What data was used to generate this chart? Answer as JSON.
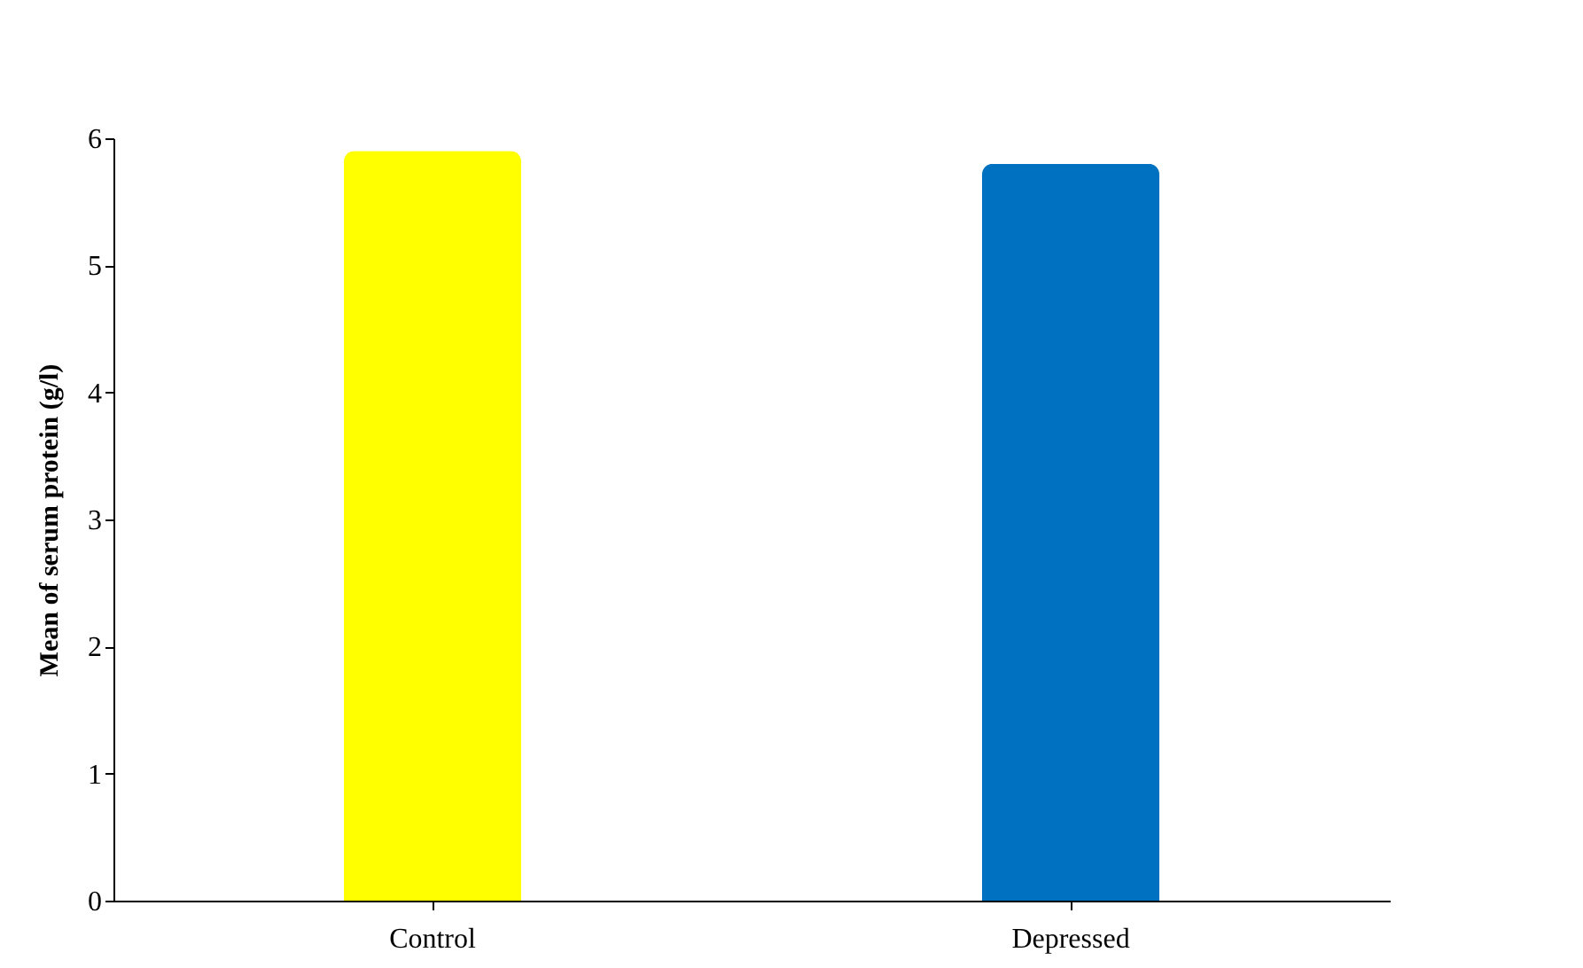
{
  "chart_data": {
    "type": "bar",
    "ylabel": "Mean of serum protein (g/l)",
    "categories": [
      "Control",
      "Depressed"
    ],
    "values": [
      5.9,
      5.8
    ],
    "colors": [
      "#ffff00",
      "#0070c0"
    ],
    "ylim": [
      0,
      6
    ],
    "yticks": [
      0,
      1,
      2,
      3,
      4,
      5,
      6
    ],
    "grid": false
  }
}
